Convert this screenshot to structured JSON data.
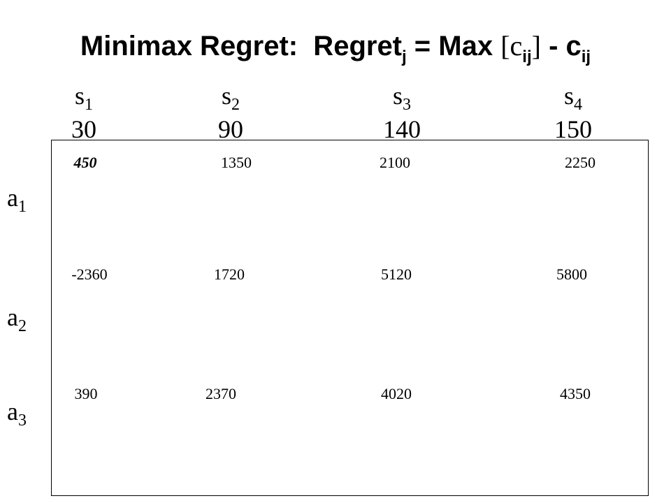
{
  "title": {
    "parts": [
      {
        "text": "Minimax Regret:  Regret"
      },
      {
        "sub": "j"
      },
      {
        "text": " = Max "
      },
      {
        "serif": "[c"
      },
      {
        "sub": "ij"
      },
      {
        "serif": "]"
      },
      {
        "text": " - c"
      },
      {
        "sub": "ij"
      }
    ]
  },
  "columns": [
    {
      "label": "s",
      "sub": "1",
      "value": 30
    },
    {
      "label": "s",
      "sub": "2",
      "value": 90
    },
    {
      "label": "s",
      "sub": "3",
      "value": 140
    },
    {
      "label": "s",
      "sub": "4",
      "value": 150
    }
  ],
  "rows": [
    {
      "label": "a",
      "sub": "1",
      "values": [
        450,
        1350,
        2100,
        2250
      ]
    },
    {
      "label": "a",
      "sub": "2",
      "values": [
        -2360,
        1720,
        5120,
        5800
      ]
    },
    {
      "label": "a",
      "sub": "3",
      "values": [
        390,
        2370,
        4020,
        4350
      ]
    }
  ]
}
